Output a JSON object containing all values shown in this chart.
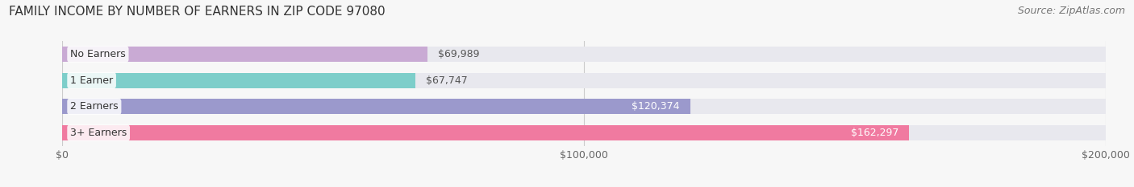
{
  "title": "FAMILY INCOME BY NUMBER OF EARNERS IN ZIP CODE 97080",
  "source": "Source: ZipAtlas.com",
  "categories": [
    "No Earners",
    "1 Earner",
    "2 Earners",
    "3+ Earners"
  ],
  "values": [
    69989,
    67747,
    120374,
    162297
  ],
  "bar_colors": [
    "#c9aad4",
    "#7dceca",
    "#9b99cc",
    "#f07aa0"
  ],
  "bar_bg_color": "#e8e8ee",
  "xlim": [
    0,
    200000
  ],
  "label_texts": [
    "$69,989",
    "$67,747",
    "$120,374",
    "$162,297"
  ],
  "label_inside": [
    false,
    false,
    true,
    true
  ],
  "x_ticks": [
    0,
    100000,
    200000
  ],
  "x_tick_labels": [
    "$0",
    "$100,000",
    "$200,000"
  ],
  "background_color": "#f7f7f7",
  "title_fontsize": 11,
  "source_fontsize": 9,
  "label_fontsize": 9,
  "category_fontsize": 9
}
